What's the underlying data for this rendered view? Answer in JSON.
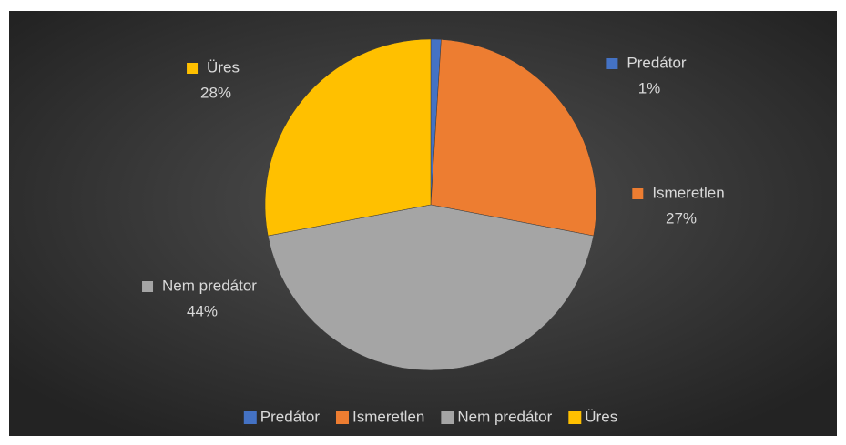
{
  "chart_data": {
    "type": "pie",
    "categories": [
      "Predátor",
      "Ismeretlen",
      "Nem predátor",
      "Üres"
    ],
    "values": [
      1,
      27,
      44,
      28
    ],
    "value_labels": [
      "1%",
      "27%",
      "44%",
      "28%"
    ],
    "colors": [
      "#4472c4",
      "#ed7d31",
      "#a5a5a5",
      "#ffc000"
    ],
    "legend": "bottom"
  }
}
